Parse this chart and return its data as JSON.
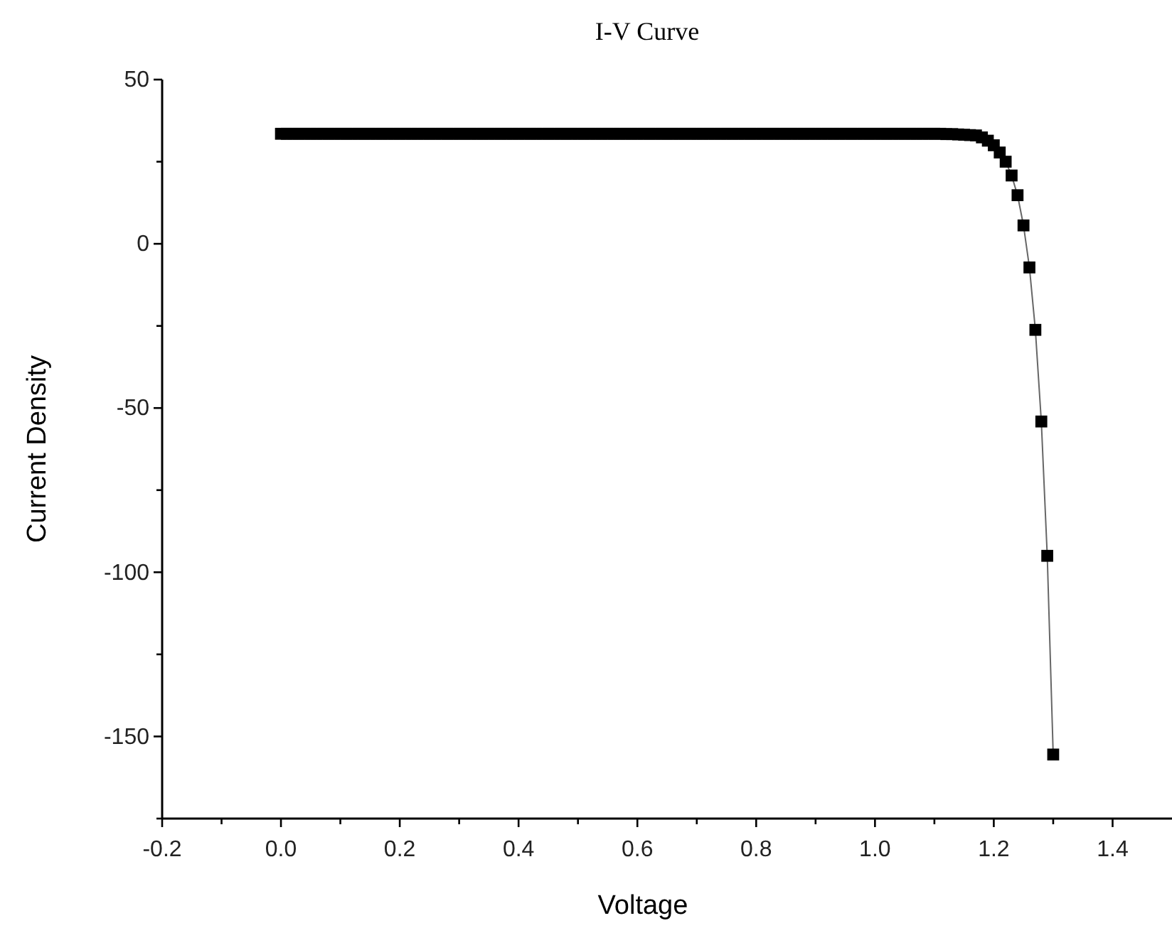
{
  "chart_data": {
    "type": "line",
    "title": "I-V Curve",
    "xlabel": "Voltage",
    "ylabel": "Current Density",
    "x": [
      0,
      0.01,
      0.02,
      0.03,
      0.04,
      0.05,
      0.06,
      0.07,
      0.08,
      0.09,
      0.1,
      0.11,
      0.12,
      0.13,
      0.14,
      0.15,
      0.16,
      0.17,
      0.18,
      0.19,
      0.2,
      0.21,
      0.22,
      0.23,
      0.24,
      0.25,
      0.26,
      0.27,
      0.28,
      0.29,
      0.3,
      0.31,
      0.32,
      0.33,
      0.34,
      0.35,
      0.36,
      0.37,
      0.38,
      0.39,
      0.4,
      0.41,
      0.42,
      0.43,
      0.44,
      0.45,
      0.46,
      0.47,
      0.48,
      0.49,
      0.5,
      0.51,
      0.52,
      0.53,
      0.54,
      0.55,
      0.56,
      0.57,
      0.58,
      0.59,
      0.6,
      0.61,
      0.62,
      0.63,
      0.64,
      0.65,
      0.66,
      0.67,
      0.68,
      0.69,
      0.7,
      0.71,
      0.72,
      0.73,
      0.74,
      0.75,
      0.76,
      0.77,
      0.78,
      0.79,
      0.8,
      0.81,
      0.82,
      0.83,
      0.84,
      0.85,
      0.86,
      0.87,
      0.88,
      0.89,
      0.9,
      0.91,
      0.92,
      0.93,
      0.94,
      0.95,
      0.96,
      0.97,
      0.98,
      0.99,
      1,
      1.01,
      1.02,
      1.03,
      1.04,
      1.05,
      1.06,
      1.07,
      1.08,
      1.09,
      1.1,
      1.11,
      1.12,
      1.13,
      1.14,
      1.15,
      1.16,
      1.17,
      1.18,
      1.19,
      1.2,
      1.21,
      1.22,
      1.23,
      1.24,
      1.25,
      1.26,
      1.27,
      1.28,
      1.29,
      1.3
    ],
    "series": [
      {
        "color": "#000000",
        "values": [
          33.5,
          33.5,
          33.5,
          33.5,
          33.5,
          33.5,
          33.5,
          33.5,
          33.5,
          33.5,
          33.5,
          33.5,
          33.5,
          33.5,
          33.5,
          33.5,
          33.5,
          33.5,
          33.5,
          33.5,
          33.5,
          33.5,
          33.5,
          33.5,
          33.5,
          33.5,
          33.5,
          33.5,
          33.5,
          33.5,
          33.5,
          33.5,
          33.5,
          33.5,
          33.5,
          33.5,
          33.5,
          33.5,
          33.5,
          33.5,
          33.5,
          33.5,
          33.5,
          33.5,
          33.5,
          33.5,
          33.5,
          33.5,
          33.5,
          33.5,
          33.5,
          33.5,
          33.5,
          33.5,
          33.5,
          33.5,
          33.5,
          33.5,
          33.5,
          33.5,
          33.5,
          33.5,
          33.5,
          33.5,
          33.5,
          33.5,
          33.5,
          33.5,
          33.5,
          33.5,
          33.5,
          33.5,
          33.5,
          33.5,
          33.5,
          33.5,
          33.5,
          33.5,
          33.5,
          33.5,
          33.5,
          33.5,
          33.5,
          33.5,
          33.5,
          33.5,
          33.5,
          33.5,
          33.5,
          33.5,
          33.5,
          33.5,
          33.5,
          33.5,
          33.5,
          33.5,
          33.5,
          33.5,
          33.5,
          33.5,
          33.5,
          33.5,
          33.5,
          33.5,
          33.5,
          33.5,
          33.5,
          33.5,
          33.5,
          33.5,
          33.5,
          33.5,
          33.4,
          33.4,
          33.3,
          33.2,
          33.1,
          33.0,
          32.4,
          31.4,
          30.0,
          27.8,
          25.0,
          20.8,
          14.8,
          5.6,
          -7.2,
          -26.2,
          -54.1,
          -95.0,
          -155.5
        ]
      }
    ],
    "marker": "square",
    "line_style": "solid",
    "xlim": [
      -0.2,
      1.5
    ],
    "ylim": [
      -175,
      50
    ],
    "xticks": [
      {
        "value": -0.2,
        "label": "-0.2"
      },
      {
        "value": -0.1,
        "label": null
      },
      {
        "value": 0,
        "label": "0.0"
      },
      {
        "value": 0.1,
        "label": null
      },
      {
        "value": 0.2,
        "label": "0.2"
      },
      {
        "value": 0.3,
        "label": null
      },
      {
        "value": 0.4,
        "label": "0.4"
      },
      {
        "value": 0.5,
        "label": null
      },
      {
        "value": 0.6,
        "label": "0.6"
      },
      {
        "value": 0.7,
        "label": null
      },
      {
        "value": 0.8,
        "label": "0.8"
      },
      {
        "value": 0.9,
        "label": null
      },
      {
        "value": 1,
        "label": "1.0"
      },
      {
        "value": 1.1,
        "label": null
      },
      {
        "value": 1.2,
        "label": "1.2"
      },
      {
        "value": 1.3,
        "label": null
      },
      {
        "value": 1.4,
        "label": "1.4"
      }
    ],
    "yticks": [
      {
        "value": -175,
        "label": null
      },
      -150,
      {
        "value": -125,
        "label": null
      },
      -100,
      {
        "value": -75,
        "label": null
      },
      -50,
      {
        "value": -25,
        "label": null
      },
      0,
      {
        "value": 25,
        "label": null
      },
      50
    ]
  }
}
